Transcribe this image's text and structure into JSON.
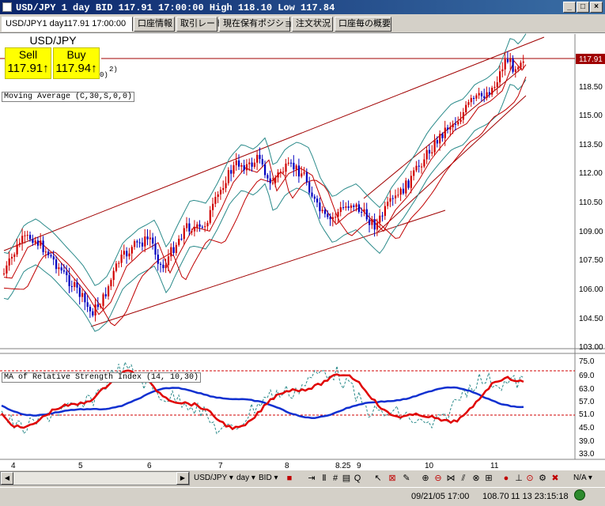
{
  "window": {
    "title": "USD/JPY 1 day BID 117.91 17:00:00 High 118.10 Low 117.84",
    "controls": {
      "minimize": "_",
      "maximize": "□",
      "close": "×"
    }
  },
  "tabs": [
    {
      "label": "USD/JPY1 day117.91 17:00:00",
      "active": true
    },
    {
      "label": "口座情報"
    },
    {
      "label": "取引レート"
    },
    {
      "label": "現在保有ポジション"
    },
    {
      "label": "注文状況"
    },
    {
      "label": "口座毎の概要"
    }
  ],
  "quote": {
    "symbol": "USD/JPY",
    "sell_label": "Sell",
    "sell_value": "117.91↑",
    "buy_label": "Buy",
    "buy_value": "117.94↑",
    "partial_1": "2)",
    "partial_2": "0)"
  },
  "indicators": {
    "ma_label": "Moving Average (C,30,S,0,0)",
    "rsi_label": "MA of Relative Strength Index (14, 10,30)"
  },
  "price_axis": {
    "labels": [
      "118.50",
      "115.00",
      "113.50",
      "112.00",
      "110.50",
      "109.00",
      "107.50",
      "106.00",
      "104.50",
      "103.00"
    ],
    "current_price": "117.91"
  },
  "rsi_axis": {
    "labels": [
      "75.0",
      "69.0",
      "63.0",
      "57.0",
      "51.0",
      "45.0",
      "39.0",
      "33.0"
    ]
  },
  "time_axis": {
    "labels": [
      "4",
      "5",
      "6",
      "7",
      "8",
      "8.25",
      "9",
      "10",
      "11"
    ]
  },
  "toolbar": {
    "symbol": "USD/JPY",
    "period": "day",
    "side": "BID",
    "zoom": "N/A",
    "icons": [
      "cursor-icon",
      "crosshair-icon",
      "grid-icon",
      "indicator-icon",
      "zoom-in-icon",
      "zoom-out-icon"
    ]
  },
  "status": {
    "datetime": "09/21/05 17:00",
    "price": "108.70",
    "timestamp": "11 13 23:15:18"
  },
  "colors": {
    "candle_up": "#d00000",
    "candle_down": "#0000c0",
    "band": "#2a8a8a",
    "ma": "#c00000",
    "channel": "#a00000",
    "rsi_red": "#e00000",
    "rsi_blue": "#1030d0",
    "quote_bg": "#ffff00"
  }
}
